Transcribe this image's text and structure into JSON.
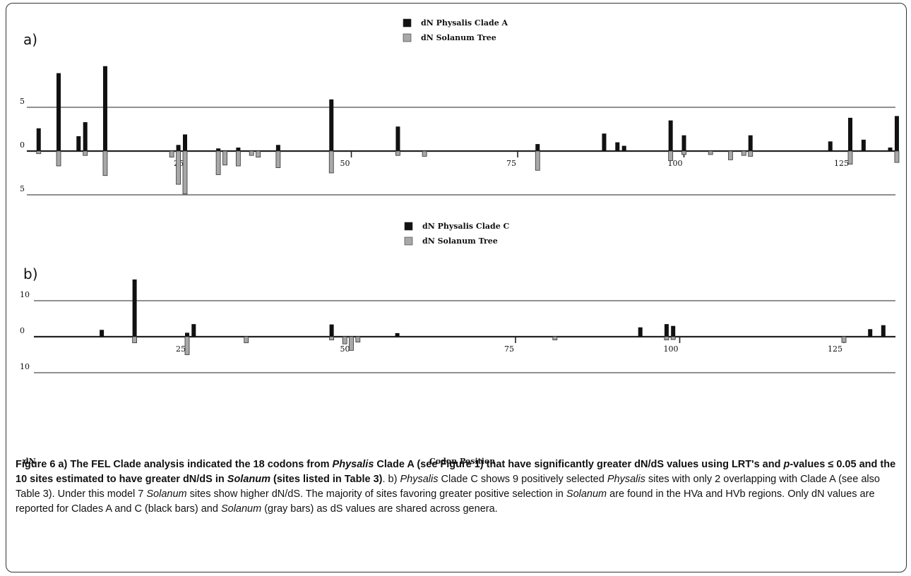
{
  "chart_data": [
    {
      "type": "bar",
      "panel_label": "a)",
      "legend": [
        {
          "name": "dN Physalis Clade A",
          "color": "#111111"
        },
        {
          "name": "dN Solanum Tree",
          "color": "#a8a8a8"
        }
      ],
      "y_tick_labels": [
        "5",
        "0",
        "5"
      ],
      "y_ticks": [
        5,
        0,
        -5
      ],
      "ylim": [
        -5.3,
        10
      ],
      "xlim": [
        1,
        135
      ],
      "x_tick_labels": [
        "25",
        "50",
        "75",
        "100",
        "125"
      ],
      "x_ticks": [
        25,
        50,
        75,
        100,
        125
      ],
      "series": [
        {
          "name": "dN Physalis Clade A",
          "color": "#111111",
          "points": [
            [
              3,
              2.6
            ],
            [
              6,
              8.9
            ],
            [
              9,
              1.7
            ],
            [
              10,
              3.3
            ],
            [
              13,
              9.7
            ],
            [
              24,
              0.7
            ],
            [
              25,
              1.9
            ],
            [
              30,
              0.3
            ],
            [
              33,
              0.4
            ],
            [
              39,
              0.7
            ],
            [
              47,
              5.9
            ],
            [
              57,
              2.8
            ],
            [
              78,
              0.8
            ],
            [
              88,
              2.0
            ],
            [
              90,
              1.0
            ],
            [
              91,
              0.6
            ],
            [
              98,
              3.5
            ],
            [
              100,
              1.8
            ],
            [
              110,
              1.8
            ],
            [
              122,
              1.1
            ],
            [
              125,
              3.8
            ],
            [
              127,
              1.3
            ],
            [
              131,
              0.4
            ],
            [
              132,
              4.0
            ]
          ]
        },
        {
          "name": "dN Solanum Tree",
          "color": "#a8a8a8",
          "points": [
            [
              3,
              -0.3
            ],
            [
              6,
              -1.7
            ],
            [
              10,
              -0.5
            ],
            [
              13,
              -2.8
            ],
            [
              23,
              -0.7
            ],
            [
              24,
              -3.8
            ],
            [
              25,
              -4.9
            ],
            [
              30,
              -2.7
            ],
            [
              31,
              -1.6
            ],
            [
              33,
              -1.7
            ],
            [
              35,
              -0.5
            ],
            [
              36,
              -0.7
            ],
            [
              39,
              -1.9
            ],
            [
              47,
              -2.5
            ],
            [
              57,
              -0.5
            ],
            [
              61,
              -0.6
            ],
            [
              78,
              -2.2
            ],
            [
              98,
              -1.1
            ],
            [
              100,
              -0.4
            ],
            [
              104,
              -0.4
            ],
            [
              107,
              -1.0
            ],
            [
              109,
              -0.5
            ],
            [
              110,
              -0.6
            ],
            [
              125,
              -1.5
            ],
            [
              132,
              -1.3
            ]
          ]
        }
      ]
    },
    {
      "type": "bar",
      "panel_label": "b)",
      "legend": [
        {
          "name": "dN Physalis Clade C",
          "color": "#111111"
        },
        {
          "name": "dN Solanum Tree",
          "color": "#a8a8a8"
        }
      ],
      "y_tick_labels": [
        "10",
        "0",
        "10"
      ],
      "y_ticks": [
        10,
        0,
        -10
      ],
      "ylim": [
        -10,
        16
      ],
      "xlim": [
        1,
        135
      ],
      "x_tick_labels": [
        "25",
        "50",
        "75",
        "100",
        "125"
      ],
      "x_ticks": [
        25,
        50,
        75,
        100,
        125
      ],
      "series": [
        {
          "name": "dN Physalis Clade C",
          "color": "#111111",
          "points": [
            [
              12,
              1.9
            ],
            [
              17,
              15.9
            ],
            [
              25,
              1.1
            ],
            [
              26,
              3.5
            ],
            [
              47,
              3.4
            ],
            [
              57,
              1.0
            ],
            [
              94,
              2.6
            ],
            [
              98,
              3.5
            ],
            [
              99,
              3.0
            ],
            [
              129,
              2.1
            ],
            [
              131,
              3.2
            ]
          ]
        },
        {
          "name": "dN Solanum Tree",
          "color": "#a8a8a8",
          "points": [
            [
              17,
              -1.7
            ],
            [
              25,
              -5.0
            ],
            [
              34,
              -1.7
            ],
            [
              47,
              -0.9
            ],
            [
              49,
              -2.0
            ],
            [
              50,
              -3.8
            ],
            [
              51,
              -1.5
            ],
            [
              81,
              -0.9
            ],
            [
              98,
              -0.9
            ],
            [
              99,
              -0.8
            ],
            [
              125,
              -1.6
            ]
          ]
        }
      ]
    }
  ],
  "axis_labels": {
    "y": "dN",
    "x": "Codon Position"
  },
  "caption": {
    "figure_label": "Figure 6",
    "p1_bold_a": " a) The FEL Clade analysis indicated the 18 codons from ",
    "p1_italic_physalis": "Physalis",
    "p1_bold_b": " Clade A (see Figure 1) that have significantly greater dN/dS values using LRT's and ",
    "p1_italic_p": "p",
    "p1_bold_c": "-values ≤ 0.05 and the 10 sites estimated to have greater dN/dS in ",
    "p1_italic_solanum": "Solanum",
    "p1_bold_d": " (sites listed in Table 3)",
    "p2_a": ". b) ",
    "p2_italic_physalis": "Physalis",
    "p2_b": " Clade C shows 9 positively selected ",
    "p2_italic_physalis2": "Physalis",
    "p2_c": " sites with only 2 overlapping with Clade A (see also Table 3). Under this model 7 ",
    "p2_italic_solanum": "Solanum",
    "p2_d": " sites show higher dN/dS. The majority of sites favoring greater positive selection in ",
    "p2_italic_solanum2": "Solanum",
    "p2_e": " are found in the HVa and HVb regions. Only dN values are reported for Clades A and C (black bars) and ",
    "p2_italic_solanum3": "Solanum",
    "p2_f": " (gray bars) as dS values are shared across genera."
  }
}
